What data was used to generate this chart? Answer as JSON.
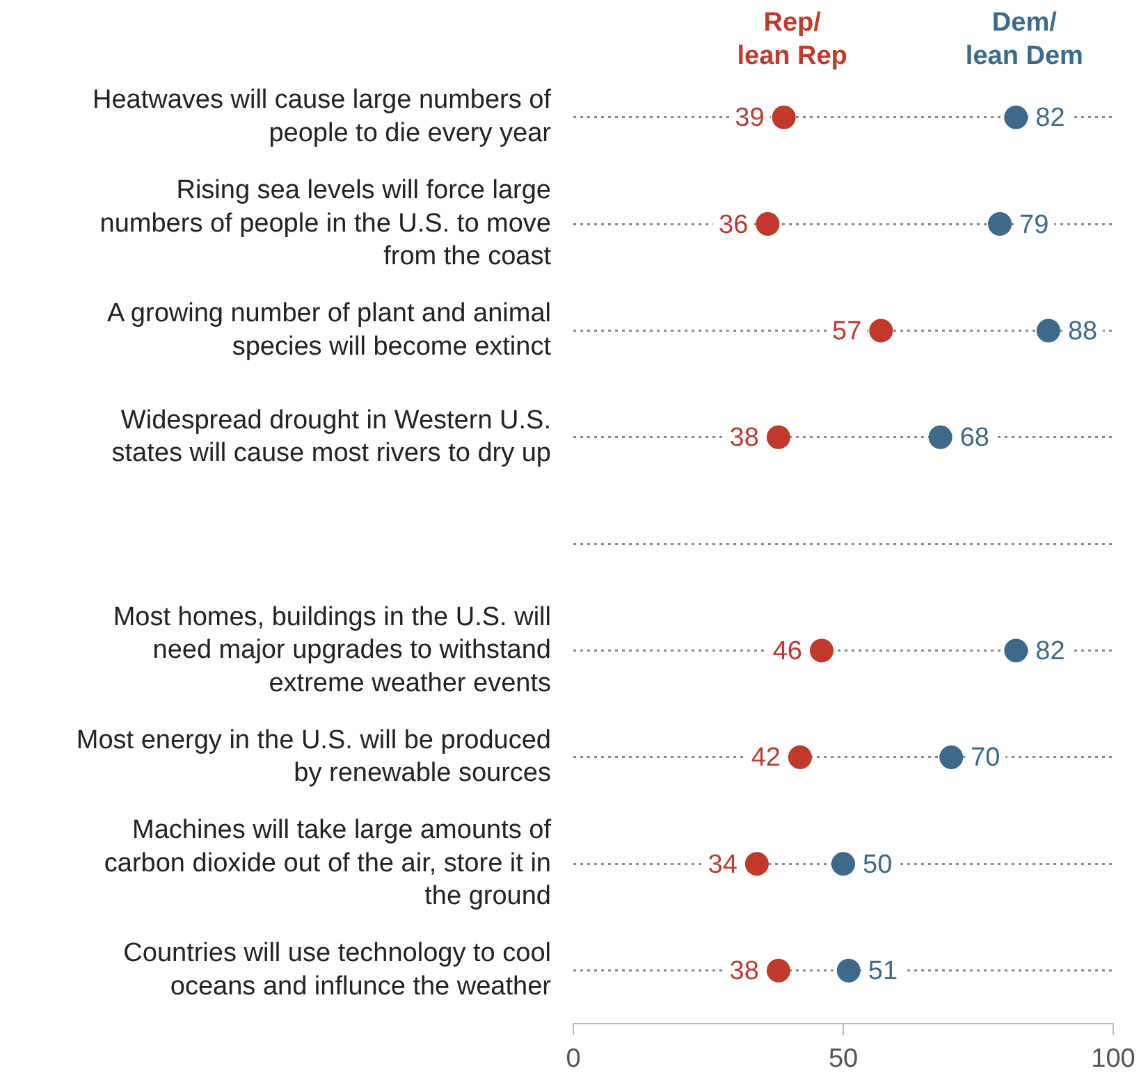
{
  "chart_data": {
    "type": "scatter",
    "orientation": "horizontal",
    "categories": [
      "Heatwaves will cause large numbers of people to die every year",
      "Rising sea levels will force large numbers of people in the U.S. to move from the coast",
      "A growing number of plant and animal species will become extinct",
      "Widespread drought in Western U.S. states will cause most rivers to dry up",
      null,
      "Most homes, buildings in the U.S. will need major upgrades to withstand extreme weather events",
      "Most energy in the U.S. will be produced by renewable sources",
      "Machines will take large amounts of carbon dioxide out of the air, store it in the ground",
      "Countries will use technology to cool oceans and influnce the weather"
    ],
    "series": [
      {
        "name": "Rep/lean Rep",
        "color": "#c0392b",
        "values": [
          39,
          36,
          57,
          38,
          null,
          46,
          42,
          34,
          38
        ]
      },
      {
        "name": "Dem/lean Dem",
        "color": "#3d6a8a",
        "values": [
          82,
          79,
          88,
          68,
          null,
          82,
          70,
          50,
          51
        ]
      }
    ],
    "xlim": [
      0,
      100
    ],
    "xticks": [
      0,
      50,
      100
    ],
    "grid": "y",
    "marker": "circle",
    "data_labels": true,
    "legend": false
  }
}
